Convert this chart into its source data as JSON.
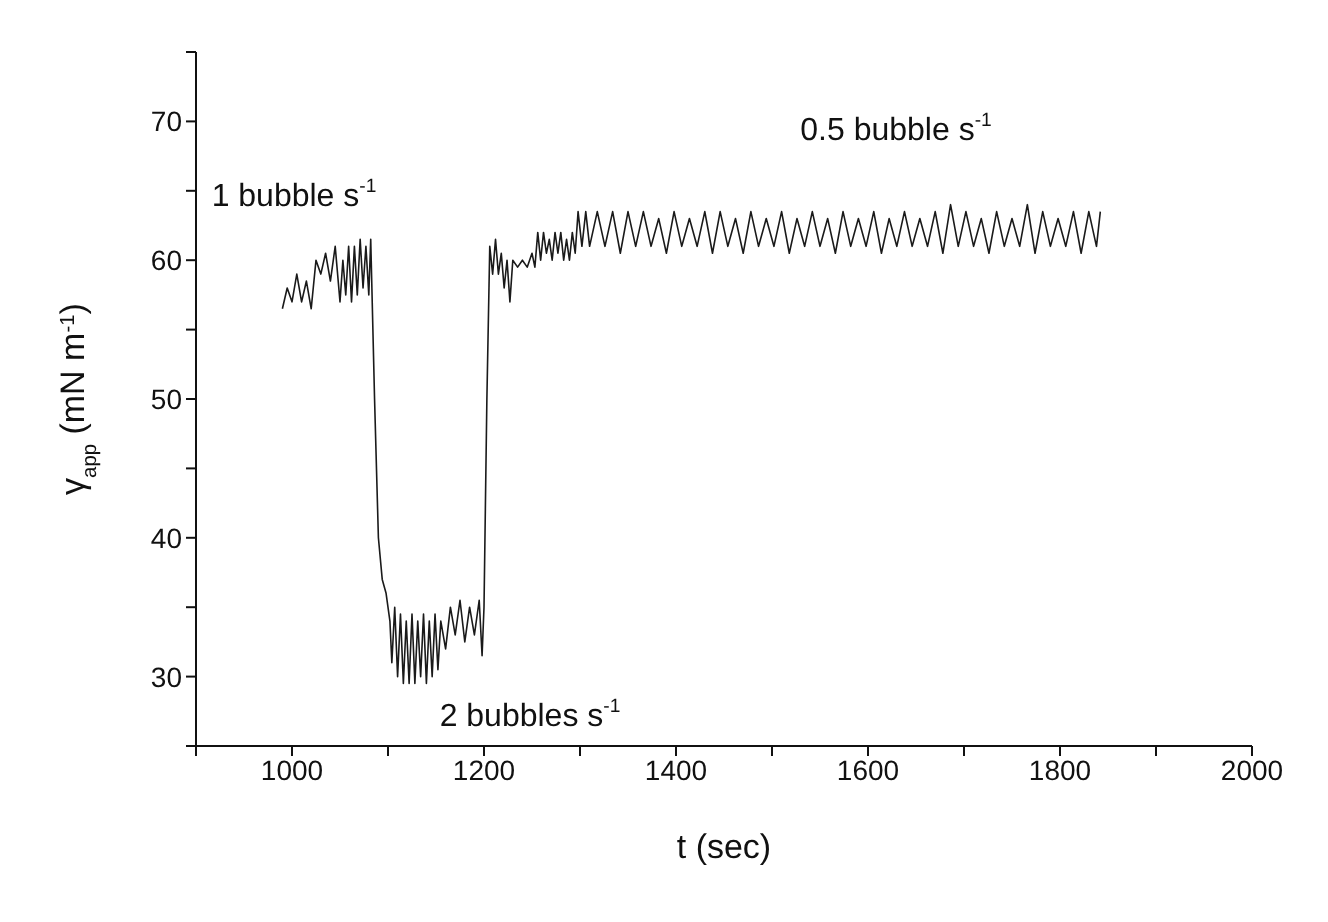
{
  "chart_data": {
    "type": "line",
    "xlabel": "t (sec)",
    "ylabel": "γ$_{app}$ (mN m$^{-1}$)",
    "annotations": [
      "1 bubble s$^{-1}$",
      "2 bubbles s$^{-1}$",
      "0.5 bubble s$^{-1}$"
    ],
    "xlim": [
      900,
      2000
    ],
    "ylim": [
      25,
      75
    ],
    "xticks": [
      {
        "value": 900,
        "label": null
      },
      1000,
      {
        "value": 1100,
        "label": null
      },
      1200,
      {
        "value": 1300,
        "label": null
      },
      1400,
      {
        "value": 1500,
        "label": null
      },
      1600,
      {
        "value": 1700,
        "label": null
      },
      1800,
      {
        "value": 1900,
        "label": null
      },
      2000
    ],
    "yticks": [
      {
        "value": 25,
        "label": null
      },
      30,
      {
        "value": 35,
        "label": null
      },
      40,
      {
        "value": 45,
        "label": null
      },
      50,
      {
        "value": 55,
        "label": null
      },
      60,
      {
        "value": 65,
        "label": null
      },
      70,
      {
        "value": 75,
        "label": null
      }
    ],
    "grid": false,
    "marker": "none",
    "line_style": "solid",
    "series": [
      {
        "color": "#1a1a1a",
        "x": [
          990,
          995,
          1000,
          1005,
          1010,
          1015,
          1020,
          1025,
          1030,
          1035,
          1040,
          1045,
          1050,
          1053,
          1056,
          1059,
          1062,
          1065,
          1068,
          1071,
          1074,
          1077,
          1080,
          1082,
          1086,
          1090,
          1094,
          1098,
          1102,
          1104,
          1107,
          1110,
          1113,
          1116,
          1119,
          1122,
          1125,
          1128,
          1131,
          1134,
          1137,
          1140,
          1143,
          1146,
          1149,
          1152,
          1155,
          1160,
          1165,
          1170,
          1175,
          1180,
          1185,
          1190,
          1195,
          1198,
          1200,
          1203,
          1206,
          1209,
          1212,
          1215,
          1218,
          1221,
          1224,
          1227,
          1230,
          1235,
          1240,
          1245,
          1250,
          1253,
          1256,
          1259,
          1262,
          1265,
          1268,
          1271,
          1274,
          1277,
          1280,
          1283,
          1286,
          1289,
          1292,
          1295,
          1298,
          1302,
          1306,
          1310,
          1318,
          1326,
          1334,
          1342,
          1350,
          1358,
          1366,
          1374,
          1382,
          1390,
          1398,
          1406,
          1414,
          1422,
          1430,
          1438,
          1446,
          1454,
          1462,
          1470,
          1478,
          1486,
          1494,
          1502,
          1510,
          1518,
          1526,
          1534,
          1542,
          1550,
          1558,
          1566,
          1574,
          1582,
          1590,
          1598,
          1606,
          1614,
          1622,
          1630,
          1638,
          1646,
          1654,
          1662,
          1670,
          1678,
          1686,
          1694,
          1702,
          1710,
          1718,
          1726,
          1734,
          1742,
          1750,
          1758,
          1766,
          1774,
          1782,
          1790,
          1798,
          1806,
          1814,
          1822,
          1830,
          1838,
          1842
        ],
        "values": [
          56.5,
          58,
          57,
          59,
          57,
          58.5,
          56.5,
          60,
          59,
          60.5,
          58.5,
          61,
          57,
          60,
          57.5,
          61,
          57,
          61,
          57.5,
          61.5,
          58,
          61,
          57.5,
          61.5,
          50,
          40,
          37,
          36,
          34,
          31,
          35,
          30,
          34.5,
          29.5,
          34,
          29.5,
          34.5,
          29.5,
          34,
          30,
          34.5,
          29.5,
          34,
          30,
          34.5,
          30.5,
          34,
          32,
          35,
          33,
          35.5,
          32.5,
          35,
          33,
          35.5,
          31.5,
          35,
          50,
          61,
          59,
          61.5,
          59,
          60.5,
          58,
          60,
          57,
          60,
          59.5,
          60,
          59.5,
          60.5,
          59.5,
          62,
          60,
          62,
          60.5,
          61.5,
          60,
          62,
          60.5,
          62,
          60,
          61.5,
          60,
          62,
          60.5,
          63.5,
          61,
          63.5,
          61,
          63.5,
          61,
          63.5,
          60.5,
          63.5,
          61,
          63.5,
          61,
          63,
          60.5,
          63.5,
          61,
          63,
          61,
          63.5,
          60.5,
          63.5,
          61,
          63,
          60.5,
          63.5,
          61,
          63,
          61,
          63.5,
          60.5,
          63,
          61,
          63.5,
          61,
          63,
          60.5,
          63.5,
          61,
          63,
          61,
          63.5,
          60.5,
          63,
          61,
          63.5,
          61,
          63,
          61,
          63.5,
          60.5,
          64,
          61,
          63.5,
          61,
          63,
          60.5,
          63.5,
          61,
          63,
          61,
          64,
          60.5,
          63.5,
          61,
          63,
          61,
          63.5,
          60.5,
          63.5,
          61,
          63.5
        ]
      }
    ]
  }
}
